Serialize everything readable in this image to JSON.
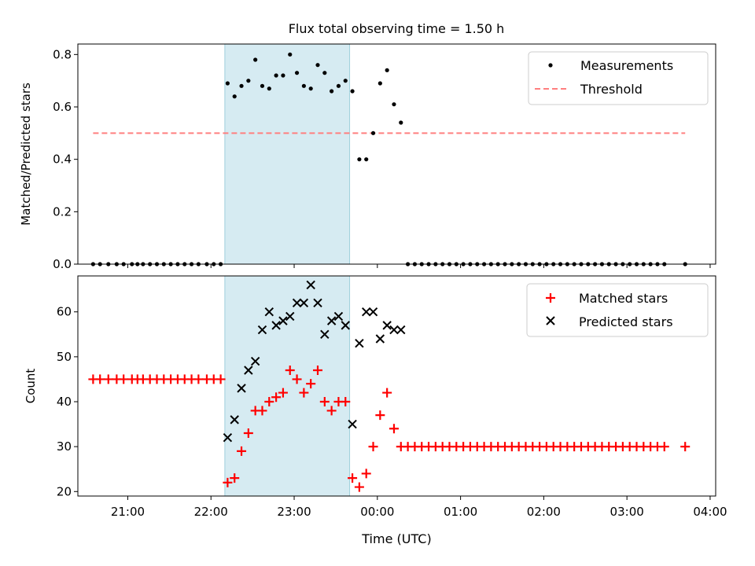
{
  "figure_title": "Flux total observing time = 1.50 h",
  "chart_data": [
    {
      "type": "scatter",
      "panel": "top",
      "title": "Flux total observing time = 1.50 h",
      "xlabel": "",
      "ylabel": "Matched/Predicted stars",
      "x_unit": "time (UTC)",
      "xlim": [
        "20:24",
        "04:04"
      ],
      "ylim": [
        0,
        0.84
      ],
      "yticks": [
        "0.0",
        "0.2",
        "0.4",
        "0.6",
        "0.8"
      ],
      "highlight_band": {
        "start": "22:10",
        "end": "23:40",
        "color": "#add8e6"
      },
      "legend": {
        "position": "top-right",
        "entries": [
          "Measurements",
          "Threshold"
        ]
      },
      "series": [
        {
          "name": "Measurements",
          "kind": "points",
          "color": "#000000",
          "points": [
            [
              "20:35",
              0
            ],
            [
              "20:40",
              0
            ],
            [
              "20:46",
              0
            ],
            [
              "20:52",
              0
            ],
            [
              "20:57",
              0
            ],
            [
              "21:03",
              0
            ],
            [
              "21:07",
              0
            ],
            [
              "21:11",
              0
            ],
            [
              "21:16",
              0
            ],
            [
              "21:21",
              0
            ],
            [
              "21:26",
              0
            ],
            [
              "21:31",
              0
            ],
            [
              "21:36",
              0
            ],
            [
              "21:41",
              0
            ],
            [
              "21:46",
              0
            ],
            [
              "21:51",
              0
            ],
            [
              "21:57",
              0
            ],
            [
              "22:02",
              0
            ],
            [
              "22:07",
              0
            ],
            [
              "22:12",
              0.69
            ],
            [
              "22:17",
              0.64
            ],
            [
              "22:22",
              0.68
            ],
            [
              "22:27",
              0.7
            ],
            [
              "22:32",
              0.78
            ],
            [
              "22:37",
              0.68
            ],
            [
              "22:42",
              0.67
            ],
            [
              "22:47",
              0.72
            ],
            [
              "22:52",
              0.72
            ],
            [
              "22:57",
              0.8
            ],
            [
              "23:02",
              0.73
            ],
            [
              "23:07",
              0.68
            ],
            [
              "23:12",
              0.67
            ],
            [
              "23:17",
              0.76
            ],
            [
              "23:22",
              0.73
            ],
            [
              "23:27",
              0.66
            ],
            [
              "23:32",
              0.68
            ],
            [
              "23:37",
              0.7
            ],
            [
              "23:42",
              0.66
            ],
            [
              "23:47",
              0.4
            ],
            [
              "23:52",
              0.4
            ],
            [
              "23:57",
              0.5
            ],
            [
              "00:02",
              0.69
            ],
            [
              "00:07",
              0.74
            ],
            [
              "00:12",
              0.61
            ],
            [
              "00:17",
              0.54
            ],
            [
              "00:22",
              0
            ],
            [
              "00:27",
              0
            ],
            [
              "00:32",
              0
            ],
            [
              "00:37",
              0
            ],
            [
              "00:42",
              0
            ],
            [
              "00:47",
              0
            ],
            [
              "00:52",
              0
            ],
            [
              "00:57",
              0
            ],
            [
              "01:02",
              0
            ],
            [
              "01:07",
              0
            ],
            [
              "01:12",
              0
            ],
            [
              "01:17",
              0
            ],
            [
              "01:22",
              0
            ],
            [
              "01:27",
              0
            ],
            [
              "01:32",
              0
            ],
            [
              "01:37",
              0
            ],
            [
              "01:42",
              0
            ],
            [
              "01:47",
              0
            ],
            [
              "01:52",
              0
            ],
            [
              "01:57",
              0
            ],
            [
              "02:02",
              0
            ],
            [
              "02:07",
              0
            ],
            [
              "02:12",
              0
            ],
            [
              "02:17",
              0
            ],
            [
              "02:22",
              0
            ],
            [
              "02:27",
              0
            ],
            [
              "02:32",
              0
            ],
            [
              "02:37",
              0
            ],
            [
              "02:42",
              0
            ],
            [
              "02:47",
              0
            ],
            [
              "02:52",
              0
            ],
            [
              "02:57",
              0
            ],
            [
              "03:02",
              0
            ],
            [
              "03:07",
              0
            ],
            [
              "03:12",
              0
            ],
            [
              "03:17",
              0
            ],
            [
              "03:22",
              0
            ],
            [
              "03:27",
              0
            ],
            [
              "03:42",
              0
            ]
          ]
        },
        {
          "name": "Threshold",
          "kind": "dashed-line",
          "color": "#ff7f7f",
          "points": [
            [
              "20:35",
              0.5
            ],
            [
              "03:42",
              0.5
            ]
          ]
        }
      ]
    },
    {
      "type": "scatter",
      "panel": "bottom",
      "title": "",
      "xlabel": "Time (UTC)",
      "ylabel": "Count",
      "x_unit": "time (UTC)",
      "xlim": [
        "20:24",
        "04:04"
      ],
      "ylim": [
        19,
        68
      ],
      "xticks": [
        "21:00",
        "22:00",
        "23:00",
        "00:00",
        "01:00",
        "02:00",
        "03:00",
        "04:00"
      ],
      "yticks": [
        "20",
        "30",
        "40",
        "50",
        "60"
      ],
      "highlight_band": {
        "start": "22:10",
        "end": "23:40",
        "color": "#add8e6"
      },
      "legend": {
        "position": "top-right",
        "entries": [
          "Matched stars",
          "Predicted stars"
        ]
      },
      "series": [
        {
          "name": "Matched stars",
          "marker": "plus",
          "color": "#ff0000",
          "points": [
            [
              "20:35",
              45
            ],
            [
              "20:40",
              45
            ],
            [
              "20:46",
              45
            ],
            [
              "20:52",
              45
            ],
            [
              "20:57",
              45
            ],
            [
              "21:03",
              45
            ],
            [
              "21:07",
              45
            ],
            [
              "21:11",
              45
            ],
            [
              "21:16",
              45
            ],
            [
              "21:21",
              45
            ],
            [
              "21:26",
              45
            ],
            [
              "21:31",
              45
            ],
            [
              "21:36",
              45
            ],
            [
              "21:41",
              45
            ],
            [
              "21:46",
              45
            ],
            [
              "21:51",
              45
            ],
            [
              "21:57",
              45
            ],
            [
              "22:02",
              45
            ],
            [
              "22:07",
              45
            ],
            [
              "22:12",
              22
            ],
            [
              "22:17",
              23
            ],
            [
              "22:22",
              29
            ],
            [
              "22:27",
              33
            ],
            [
              "22:32",
              38
            ],
            [
              "22:37",
              38
            ],
            [
              "22:42",
              40
            ],
            [
              "22:47",
              41
            ],
            [
              "22:52",
              42
            ],
            [
              "22:57",
              47
            ],
            [
              "23:02",
              45
            ],
            [
              "23:07",
              42
            ],
            [
              "23:12",
              44
            ],
            [
              "23:17",
              47
            ],
            [
              "23:22",
              40
            ],
            [
              "23:27",
              38
            ],
            [
              "23:32",
              40
            ],
            [
              "23:37",
              40
            ],
            [
              "23:42",
              23
            ],
            [
              "23:47",
              21
            ],
            [
              "23:52",
              24
            ],
            [
              "23:57",
              30
            ],
            [
              "00:02",
              37
            ],
            [
              "00:07",
              42
            ],
            [
              "00:12",
              34
            ],
            [
              "00:17",
              30
            ],
            [
              "00:22",
              30
            ],
            [
              "00:27",
              30
            ],
            [
              "00:32",
              30
            ],
            [
              "00:37",
              30
            ],
            [
              "00:42",
              30
            ],
            [
              "00:47",
              30
            ],
            [
              "00:52",
              30
            ],
            [
              "00:57",
              30
            ],
            [
              "01:02",
              30
            ],
            [
              "01:07",
              30
            ],
            [
              "01:12",
              30
            ],
            [
              "01:17",
              30
            ],
            [
              "01:22",
              30
            ],
            [
              "01:27",
              30
            ],
            [
              "01:32",
              30
            ],
            [
              "01:37",
              30
            ],
            [
              "01:42",
              30
            ],
            [
              "01:47",
              30
            ],
            [
              "01:52",
              30
            ],
            [
              "01:57",
              30
            ],
            [
              "02:02",
              30
            ],
            [
              "02:07",
              30
            ],
            [
              "02:12",
              30
            ],
            [
              "02:17",
              30
            ],
            [
              "02:22",
              30
            ],
            [
              "02:27",
              30
            ],
            [
              "02:32",
              30
            ],
            [
              "02:37",
              30
            ],
            [
              "02:42",
              30
            ],
            [
              "02:47",
              30
            ],
            [
              "02:52",
              30
            ],
            [
              "02:57",
              30
            ],
            [
              "03:02",
              30
            ],
            [
              "03:07",
              30
            ],
            [
              "03:12",
              30
            ],
            [
              "03:17",
              30
            ],
            [
              "03:22",
              30
            ],
            [
              "03:27",
              30
            ],
            [
              "03:42",
              30
            ]
          ]
        },
        {
          "name": "Predicted stars",
          "marker": "x",
          "color": "#000000",
          "points": [
            [
              "22:12",
              32
            ],
            [
              "22:17",
              36
            ],
            [
              "22:22",
              43
            ],
            [
              "22:27",
              47
            ],
            [
              "22:32",
              49
            ],
            [
              "22:37",
              56
            ],
            [
              "22:42",
              60
            ],
            [
              "22:47",
              57
            ],
            [
              "22:52",
              58
            ],
            [
              "22:57",
              59
            ],
            [
              "23:02",
              62
            ],
            [
              "23:07",
              62
            ],
            [
              "23:12",
              66
            ],
            [
              "23:17",
              62
            ],
            [
              "23:22",
              55
            ],
            [
              "23:27",
              58
            ],
            [
              "23:32",
              59
            ],
            [
              "23:37",
              57
            ],
            [
              "23:42",
              35
            ],
            [
              "23:47",
              53
            ],
            [
              "23:52",
              60
            ],
            [
              "23:57",
              60
            ],
            [
              "00:02",
              54
            ],
            [
              "00:07",
              57
            ],
            [
              "00:12",
              56
            ],
            [
              "00:17",
              56
            ]
          ]
        }
      ]
    }
  ]
}
